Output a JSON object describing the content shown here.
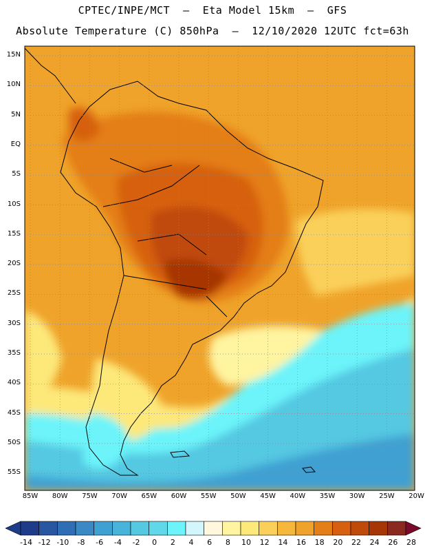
{
  "header": {
    "line1": "CPTEC/INPE/MCT  –  Eta Model 15km  –  GFS",
    "line2": "Absolute Temperature (C) 850hPa  –  12/10/2020 12UTC fct=63h"
  },
  "axes": {
    "lat_labels": [
      "15N",
      "10N",
      "5N",
      "EQ",
      "5S",
      "10S",
      "15S",
      "20S",
      "25S",
      "30S",
      "35S",
      "40S",
      "45S",
      "50S",
      "55S"
    ],
    "lon_labels": [
      "85W",
      "80W",
      "75W",
      "70W",
      "65W",
      "60W",
      "55W",
      "50W",
      "45W",
      "40W",
      "35W",
      "30W",
      "25W",
      "20W"
    ]
  },
  "colorbar": {
    "labels": [
      "-14",
      "-12",
      "-10",
      "-8",
      "-6",
      "-4",
      "-2",
      "0",
      "2",
      "4",
      "6",
      "8",
      "10",
      "12",
      "14",
      "16",
      "18",
      "20",
      "22",
      "24",
      "26",
      "28"
    ],
    "colors": [
      "#1e3c8a",
      "#2856a0",
      "#2f6eb4",
      "#3a88c4",
      "#3fa0d2",
      "#48b4da",
      "#55c8e2",
      "#60d8ea",
      "#6cf4fa",
      "#d2f6fc",
      "#fff8dc",
      "#fff4a0",
      "#fde87a",
      "#fad05a",
      "#f5b83a",
      "#efa32a",
      "#e47e18",
      "#d66010",
      "#c04a0a",
      "#a63606",
      "#8a2a1e"
    ]
  }
}
